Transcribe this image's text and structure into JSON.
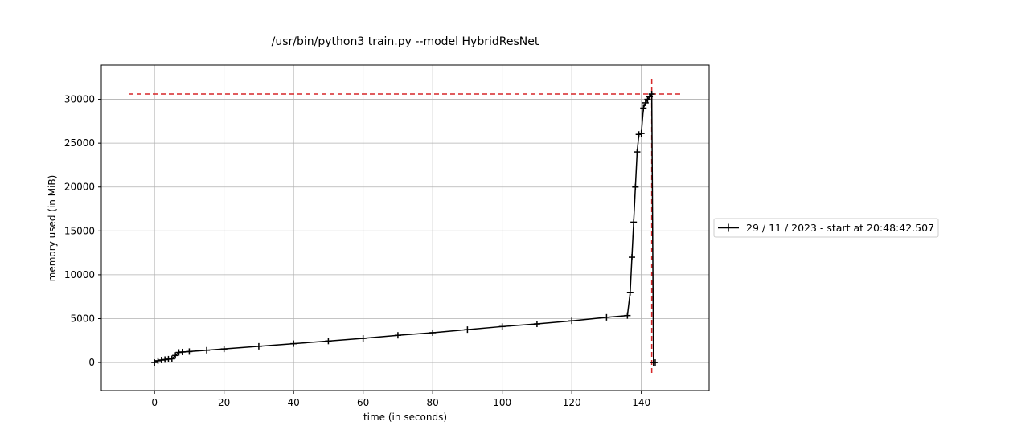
{
  "chart_data": {
    "type": "line",
    "title": "/usr/bin/python3 train.py --model HybridResNet",
    "xlabel": "time (in seconds)",
    "ylabel": "memory used (in MiB)",
    "xlim": [
      -15.3,
      159.5
    ],
    "ylim": [
      -3200,
      33900
    ],
    "xticks": [
      0,
      20,
      40,
      60,
      80,
      100,
      120,
      140
    ],
    "yticks": [
      0,
      5000,
      10000,
      15000,
      20000,
      25000,
      30000
    ],
    "grid": true,
    "legend_position": "right, outside plot",
    "series": [
      {
        "name": "29 / 11 / 2023 - start at 20:48:42.507",
        "color": "#000000",
        "marker": "+",
        "x": [
          0.0,
          1.0,
          2.0,
          3.0,
          4.0,
          5.0,
          6.0,
          7.0,
          8.0,
          10.0,
          15.0,
          20.0,
          30.0,
          40.0,
          50.0,
          60.0,
          70.0,
          80.0,
          90.0,
          100.0,
          110.0,
          120.0,
          130.0,
          136.0,
          136.8,
          137.3,
          137.8,
          138.3,
          138.8,
          139.3,
          140.0,
          140.6,
          141.2,
          141.8,
          142.4,
          143.0,
          143.5,
          144.0
        ],
        "y": [
          0,
          200,
          280,
          330,
          380,
          420,
          800,
          1150,
          1200,
          1250,
          1400,
          1550,
          1850,
          2150,
          2450,
          2750,
          3100,
          3400,
          3750,
          4100,
          4400,
          4750,
          5150,
          5350,
          8000,
          12000,
          16000,
          20000,
          24000,
          26000,
          26100,
          29000,
          29600,
          30000,
          30300,
          30600,
          0,
          0
        ]
      }
    ],
    "annotations": {
      "max_line_y": 30600,
      "max_line_x": 143.0,
      "max_line_color": "#d62728"
    }
  }
}
